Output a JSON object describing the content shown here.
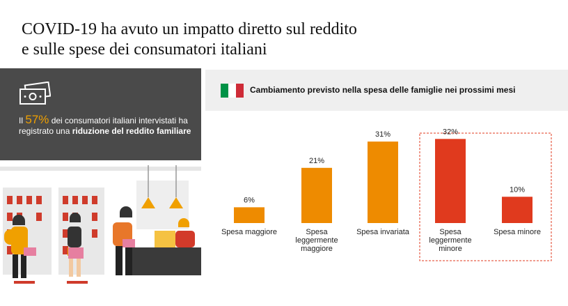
{
  "headline": {
    "line1": "COVID-19 ha avuto un impatto diretto sul reddito",
    "line2": "e sulle spese dei consumatori italiani"
  },
  "stat": {
    "prefix": "Il ",
    "percent": "57%",
    "middle": " dei consumatori italiani intervistati ha registrato una ",
    "bold": "riduzione del reddito familiare",
    "icon": "money-icon"
  },
  "colors": {
    "bar_orange": "#ee8b00",
    "bar_red": "#e03a1e",
    "highlight_border": "#e03a1e",
    "flag_green": "#009246",
    "flag_white": "#ffffff",
    "flag_red": "#ce2b37",
    "panel_dark": "#4a4a4a",
    "header_bg": "#efefef"
  },
  "chart_data": {
    "type": "bar",
    "title": "Cambiamento previsto nella spesa delle famiglie nei prossimi mesi",
    "categories": [
      [
        "Spesa maggiore"
      ],
      [
        "Spesa",
        "leggermente",
        "maggiore"
      ],
      [
        "Spesa invariata"
      ],
      [
        "Spesa",
        "leggermente",
        "minore"
      ],
      [
        "Spesa minore"
      ]
    ],
    "values": [
      6,
      21,
      31,
      32,
      10
    ],
    "value_labels": [
      "6%",
      "21%",
      "31%",
      "32%",
      "10%"
    ],
    "bar_colors": [
      "#ee8b00",
      "#ee8b00",
      "#ee8b00",
      "#e03a1e",
      "#e03a1e"
    ],
    "highlighted_category_index": 3,
    "ylim": [
      0,
      35
    ],
    "grid": false
  }
}
